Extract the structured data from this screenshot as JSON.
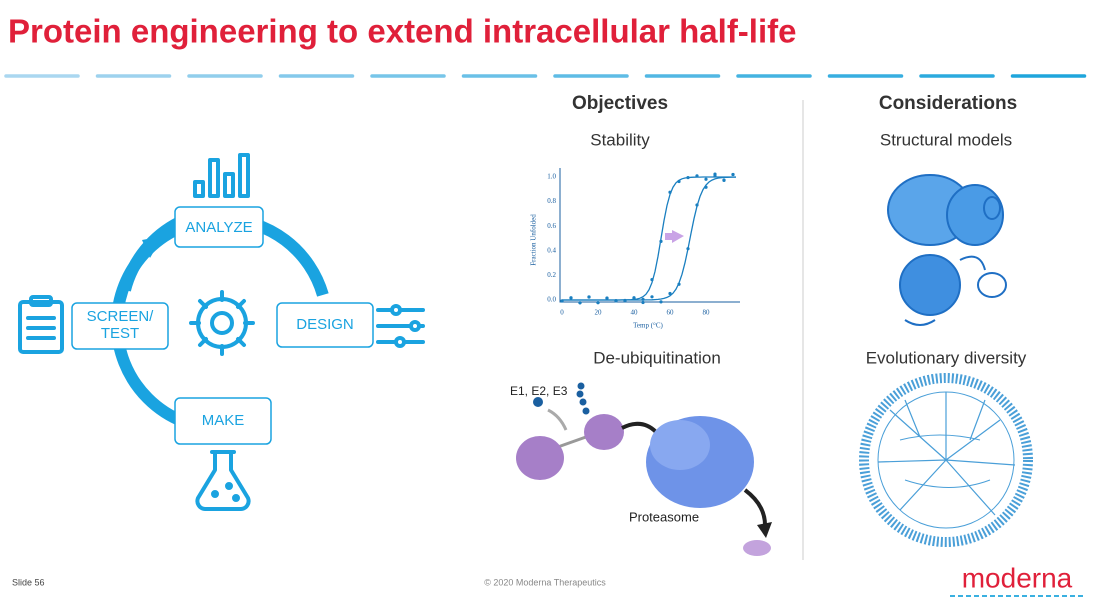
{
  "header": {
    "title": "Protein engineering to extend intracellular half-life"
  },
  "cycle": {
    "analyze": "ANALYZE",
    "design": "DESIGN",
    "make": "MAKE",
    "screen": [
      "SCREEN/",
      "TEST"
    ]
  },
  "objectives": {
    "heading": "Objectives",
    "stability": "Stability",
    "deubiquitination": "De-ubiquitination",
    "enzymes": "E1, E2, E3",
    "proteasome": "Proteasome",
    "stability_plot": {
      "y_label": "Fraction Unfolded",
      "x_label": "Temp (°C)",
      "yticks": [
        "0.0",
        "0.2",
        "0.4",
        "0.6",
        "0.8",
        "1.0"
      ],
      "xticks": [
        "0",
        "20",
        "40",
        "60",
        "80"
      ]
    }
  },
  "considerations": {
    "heading": "Considerations",
    "structural": "Structural models",
    "evolutionary": "Evolutionary diversity"
  },
  "footer": {
    "slide": "Slide 56",
    "copyright": "© 2020 Moderna Therapeutics",
    "brand": "moderna"
  }
}
